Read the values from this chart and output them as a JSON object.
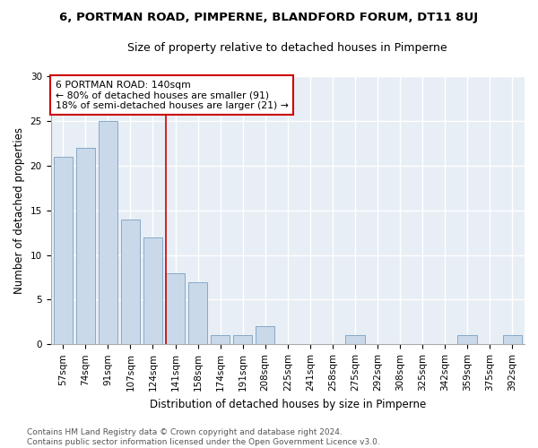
{
  "title": "6, PORTMAN ROAD, PIMPERNE, BLANDFORD FORUM, DT11 8UJ",
  "subtitle": "Size of property relative to detached houses in Pimperne",
  "xlabel": "Distribution of detached houses by size in Pimperne",
  "ylabel": "Number of detached properties",
  "bar_color": "#c9d9ea",
  "bar_edge_color": "#7aa0c0",
  "background_color": "#e8eef5",
  "grid_color": "#ffffff",
  "categories": [
    "57sqm",
    "74sqm",
    "91sqm",
    "107sqm",
    "124sqm",
    "141sqm",
    "158sqm",
    "174sqm",
    "191sqm",
    "208sqm",
    "225sqm",
    "241sqm",
    "258sqm",
    "275sqm",
    "292sqm",
    "308sqm",
    "325sqm",
    "342sqm",
    "359sqm",
    "375sqm",
    "392sqm"
  ],
  "values": [
    21,
    22,
    25,
    14,
    12,
    8,
    7,
    1,
    1,
    2,
    0,
    0,
    0,
    1,
    0,
    0,
    0,
    0,
    1,
    0,
    1
  ],
  "annotation_line1": "6 PORTMAN ROAD: 140sqm",
  "annotation_line2": "← 80% of detached houses are smaller (91)",
  "annotation_line3": "18% of semi-detached houses are larger (21) →",
  "annotation_box_color": "#ffffff",
  "annotation_box_edge": "#cc0000",
  "vline_color": "#cc0000",
  "ylim": [
    0,
    30
  ],
  "yticks": [
    0,
    5,
    10,
    15,
    20,
    25,
    30
  ],
  "footer_line1": "Contains HM Land Registry data © Crown copyright and database right 2024.",
  "footer_line2": "Contains public sector information licensed under the Open Government Licence v3.0.",
  "title_fontsize": 9.5,
  "subtitle_fontsize": 9,
  "axis_label_fontsize": 8.5,
  "tick_fontsize": 7.5,
  "footer_fontsize": 6.5
}
